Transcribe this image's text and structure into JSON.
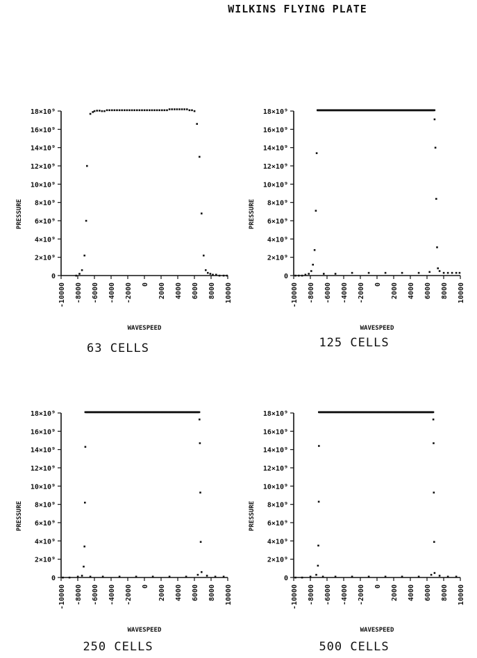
{
  "figure": {
    "title": "WILKINS FLYING PLATE"
  },
  "chart_data": [
    {
      "type": "scatter",
      "caption": "63 CELLS",
      "xlabel": "WAVESPEED",
      "ylabel": "PRESSURE",
      "xlim": [
        -10000,
        10000
      ],
      "ylim": [
        0,
        18
      ],
      "x_ticks": [
        "-10000",
        "-8000",
        "-6000",
        "-4000",
        "-2000",
        "0",
        "2000",
        "4000",
        "6000",
        "8000",
        "10000"
      ],
      "y_ticks": [
        "0",
        "2×10⁹",
        "4×10⁹",
        "6×10⁹",
        "8×10⁹",
        "10×10⁹",
        "12×10⁹",
        "14×10⁹",
        "16×10⁹",
        "18×10⁹"
      ],
      "series": [
        {
          "x": [
            -6500,
            -6200,
            -6000,
            -5700,
            -5400,
            -5100,
            -4800,
            -4500,
            -4200,
            -3900,
            -3600,
            -3300,
            -3000,
            -2700,
            -2400,
            -2100,
            -1800,
            -1500,
            -1200,
            -900,
            -600,
            -300,
            0,
            300,
            600,
            900,
            1200,
            1500,
            1800,
            2100,
            2400,
            2700,
            3000,
            3300,
            3600,
            3900,
            4200,
            4500,
            4800,
            5100,
            5400,
            5700,
            6000,
            6300,
            6600,
            6850,
            7100,
            7350,
            7600,
            7900,
            8200,
            8600,
            9000,
            9500,
            9900,
            -8200,
            -7800,
            -7500,
            -7200,
            -7000,
            -6900
          ],
          "y": [
            17.7,
            17.9,
            18.0,
            18.05,
            18.05,
            18.0,
            18.0,
            18.1,
            18.1,
            18.1,
            18.1,
            18.1,
            18.1,
            18.1,
            18.1,
            18.1,
            18.1,
            18.1,
            18.1,
            18.1,
            18.1,
            18.1,
            18.1,
            18.1,
            18.1,
            18.1,
            18.1,
            18.1,
            18.1,
            18.1,
            18.1,
            18.1,
            18.2,
            18.2,
            18.2,
            18.2,
            18.2,
            18.2,
            18.2,
            18.2,
            18.1,
            18.1,
            18.0,
            16.6,
            13.0,
            6.8,
            2.2,
            0.6,
            0.3,
            0.2,
            0.1,
            0.1,
            0.0,
            0.0,
            0.0,
            0.0,
            0.2,
            0.6,
            2.2,
            6.0,
            12.0
          ]
        }
      ]
    },
    {
      "type": "scatter",
      "caption": "125 CELLS",
      "xlabel": "WAVESPEED",
      "ylabel": "PRESSURE",
      "xlim": [
        -10000,
        10000
      ],
      "ylim": [
        0,
        18
      ],
      "x_ticks": [
        "-10000",
        "-8000",
        "-6000",
        "-4000",
        "-2000",
        "0",
        "2000",
        "4000",
        "6000",
        "8000",
        "10000"
      ],
      "y_ticks": [
        "0",
        "2×10⁹",
        "4×10⁹",
        "6×10⁹",
        "8×10⁹",
        "10×10⁹",
        "12×10⁹",
        "14×10⁹",
        "16×10⁹",
        "18×10⁹"
      ],
      "series": [
        {
          "x": [
            -9800,
            -9400,
            -9000,
            -8600,
            -8200,
            -7900,
            -7700,
            -7500,
            -7350,
            -7250,
            -7150,
            -6400,
            -5000,
            -3000,
            -1000,
            1000,
            3000,
            5000,
            6300,
            6900,
            7000,
            7100,
            7200,
            7300,
            7500,
            8000,
            8500,
            9000,
            9500,
            9900
          ],
          "y": [
            0.0,
            0.0,
            0.0,
            0.1,
            0.2,
            0.5,
            1.2,
            2.8,
            7.1,
            13.4,
            18.1,
            0.2,
            0.2,
            0.3,
            0.3,
            0.3,
            0.3,
            0.3,
            0.4,
            17.1,
            14.0,
            8.4,
            3.1,
            0.8,
            0.5,
            0.3,
            0.3,
            0.3,
            0.3,
            0.3
          ]
        }
      ]
    },
    {
      "type": "scatter",
      "caption": "250 CELLS",
      "xlabel": "WAVESPEED",
      "ylabel": "PRESSURE",
      "xlim": [
        -10000,
        10000
      ],
      "ylim": [
        0,
        18
      ],
      "x_ticks": [
        "-10000",
        "-8000",
        "-6000",
        "-4000",
        "-2000",
        "0",
        "2000",
        "4000",
        "6000",
        "8000",
        "10000"
      ],
      "y_ticks": [
        "0",
        "2×10⁹",
        "4×10⁹",
        "6×10⁹",
        "8×10⁹",
        "10×10⁹",
        "12×10⁹",
        "14×10⁹",
        "16×10⁹",
        "18×10⁹"
      ],
      "series": [
        {
          "x": [
            -9800,
            -9000,
            -8000,
            -7500,
            -7300,
            -7200,
            -7150,
            -7100,
            -6500,
            -5000,
            -3000,
            -1000,
            1000,
            3000,
            5000,
            6400,
            6600,
            6650,
            6700,
            6750,
            6850,
            7500,
            8500,
            9500
          ],
          "y": [
            0.0,
            0.0,
            0.1,
            0.2,
            1.2,
            3.4,
            8.2,
            14.3,
            0.1,
            0.1,
            0.1,
            0.1,
            0.1,
            0.1,
            0.1,
            0.3,
            17.3,
            14.7,
            9.3,
            3.9,
            0.6,
            0.2,
            0.1,
            0.1
          ]
        }
      ]
    },
    {
      "type": "scatter",
      "caption": "500 CELLS",
      "xlabel": "WAVESPEED",
      "ylabel": "PRESSURE",
      "xlim": [
        -10000,
        10000
      ],
      "ylim": [
        0,
        18
      ],
      "x_ticks": [
        "-10000",
        "-8000",
        "-6000",
        "-4000",
        "-2000",
        "0",
        "2000",
        "4000",
        "6000",
        "8000",
        "10000"
      ],
      "y_ticks": [
        "0",
        "2×10⁹",
        "4×10⁹",
        "6×10⁹",
        "8×10⁹",
        "10×10⁹",
        "12×10⁹",
        "14×10⁹",
        "16×10⁹",
        "18×10⁹"
      ],
      "series": [
        {
          "x": [
            -9800,
            -9000,
            -8000,
            -7300,
            -7100,
            -7050,
            -7000,
            -6980,
            -6500,
            -5000,
            -3000,
            -1000,
            1000,
            3000,
            5000,
            6500,
            6750,
            6780,
            6810,
            6850,
            6900,
            7500,
            8500,
            9500
          ],
          "y": [
            0.0,
            0.0,
            0.1,
            0.3,
            1.3,
            3.5,
            8.3,
            14.4,
            0.1,
            0.1,
            0.1,
            0.1,
            0.1,
            0.1,
            0.1,
            0.3,
            17.3,
            14.7,
            9.3,
            3.9,
            0.5,
            0.2,
            0.1,
            0.1
          ]
        }
      ]
    }
  ]
}
